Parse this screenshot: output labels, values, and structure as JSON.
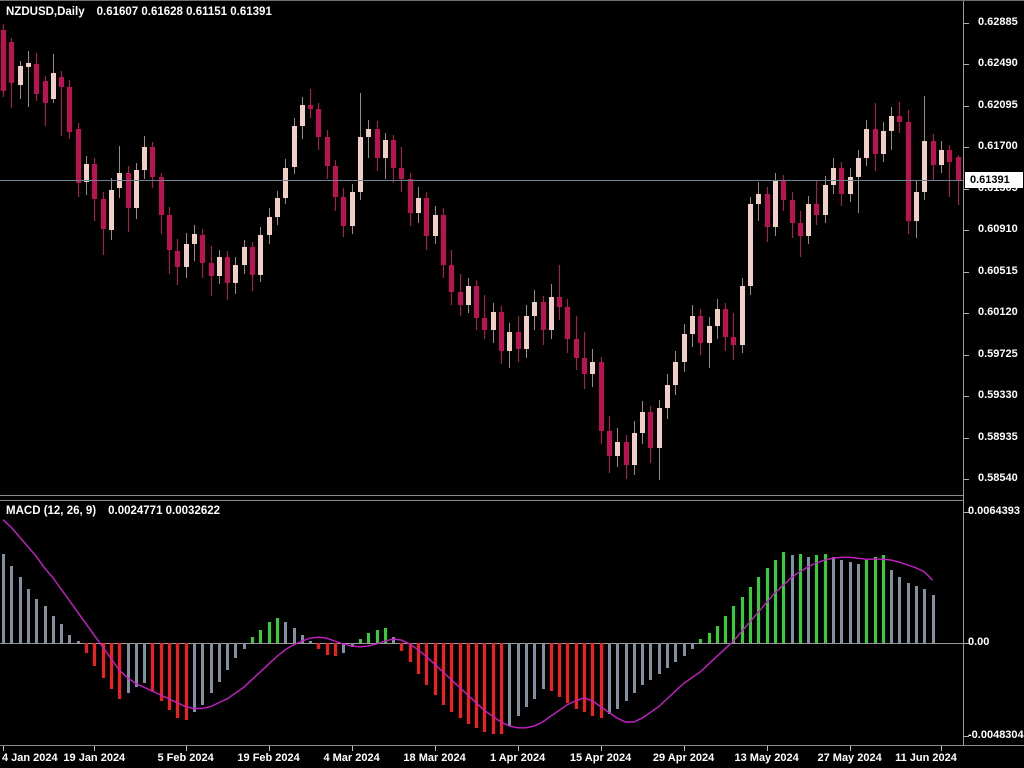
{
  "window": {
    "background": "#000000"
  },
  "price_panel": {
    "symbol": "NZDUSD,Daily",
    "ohlc_text": "0.61607 0.61628 0.61151 0.61391",
    "open": "0.61607",
    "high": "0.61628",
    "low": "0.61151",
    "close": "0.61391",
    "bid": "0.61391"
  },
  "macd_panel": {
    "label": "MACD (12, 26, 9)",
    "values_text": "0.0024771 0.0032622",
    "macd_value": "0.0024771",
    "signal_value": "0.0032622",
    "axis_labels": [
      "0.0064393",
      "0.00",
      "-0.0048304"
    ]
  },
  "colors": {
    "background": "#000000",
    "bull_body": "#f2cfc6",
    "bull_wick": "#9e8686",
    "bear_body": "#bc1254",
    "hist_gray": "#8191a2",
    "hist_red": "#fb1b1b",
    "hist_green": "#2fd32f",
    "signal_line": "#c81ec8",
    "bid_line": "#708090",
    "axis_text": "#ffffff",
    "frame": "#8a8a8a"
  },
  "chart_data": [
    {
      "type": "candlestick",
      "symbol": "NZDUSD",
      "timeframe": "Daily",
      "current_price": 0.61391,
      "y_axis_ticks": [
        0.62885,
        0.6249,
        0.62095,
        0.617,
        0.61305,
        0.6091,
        0.60515,
        0.6012,
        0.59725,
        0.5933,
        0.58935,
        0.5854
      ],
      "x_ticks": [
        {
          "label": "4 Jan 2024",
          "i": 0
        },
        {
          "label": "19 Jan 2024",
          "i": 11
        },
        {
          "label": "5 Feb 2024",
          "i": 22
        },
        {
          "label": "19 Feb 2024",
          "i": 32
        },
        {
          "label": "4 Mar 2024",
          "i": 42
        },
        {
          "label": "18 Mar 2024",
          "i": 52
        },
        {
          "label": "1 Apr 2024",
          "i": 62
        },
        {
          "label": "15 Apr 2024",
          "i": 72
        },
        {
          "label": "29 Apr 2024",
          "i": 82
        },
        {
          "label": "13 May 2024",
          "i": 92
        },
        {
          "label": "27 May 2024",
          "i": 102
        },
        {
          "label": "11 Jun 2024",
          "i": 113
        }
      ],
      "candles": [
        [
          0.6282,
          0.6288,
          0.6218,
          0.6224
        ],
        [
          0.627,
          0.6274,
          0.6208,
          0.6231
        ],
        [
          0.6229,
          0.6252,
          0.6216,
          0.6248
        ],
        [
          0.6247,
          0.6262,
          0.6209,
          0.625
        ],
        [
          0.6249,
          0.626,
          0.6214,
          0.6221
        ],
        [
          0.6233,
          0.6238,
          0.619,
          0.6212
        ],
        [
          0.6216,
          0.6259,
          0.6212,
          0.6241
        ],
        [
          0.6237,
          0.6243,
          0.6181,
          0.6228
        ],
        [
          0.6228,
          0.6234,
          0.6178,
          0.6185
        ],
        [
          0.6188,
          0.6193,
          0.6123,
          0.6136
        ],
        [
          0.6137,
          0.6162,
          0.6125,
          0.6154
        ],
        [
          0.6154,
          0.616,
          0.61,
          0.6121
        ],
        [
          0.6121,
          0.6128,
          0.6068,
          0.6092
        ],
        [
          0.6091,
          0.6141,
          0.6082,
          0.613
        ],
        [
          0.6131,
          0.6171,
          0.6122,
          0.6146
        ],
        [
          0.6146,
          0.6152,
          0.609,
          0.6112
        ],
        [
          0.6112,
          0.6155,
          0.6102,
          0.6149
        ],
        [
          0.6149,
          0.6181,
          0.614,
          0.617
        ],
        [
          0.617,
          0.6175,
          0.6131,
          0.6142
        ],
        [
          0.6142,
          0.6146,
          0.6088,
          0.6106
        ],
        [
          0.6106,
          0.6113,
          0.605,
          0.6072
        ],
        [
          0.6071,
          0.6083,
          0.6039,
          0.6056
        ],
        [
          0.6056,
          0.6089,
          0.6046,
          0.6078
        ],
        [
          0.6078,
          0.6096,
          0.6062,
          0.6088
        ],
        [
          0.6087,
          0.6092,
          0.6046,
          0.606
        ],
        [
          0.606,
          0.6076,
          0.6029,
          0.6048
        ],
        [
          0.6048,
          0.6072,
          0.604,
          0.6066
        ],
        [
          0.6066,
          0.6071,
          0.6025,
          0.6041
        ],
        [
          0.6041,
          0.6066,
          0.6031,
          0.6058
        ],
        [
          0.6058,
          0.6082,
          0.605,
          0.6075
        ],
        [
          0.6075,
          0.608,
          0.6033,
          0.6049
        ],
        [
          0.6049,
          0.6094,
          0.6042,
          0.6087
        ],
        [
          0.6087,
          0.6112,
          0.6078,
          0.6104
        ],
        [
          0.6104,
          0.6129,
          0.6096,
          0.6122
        ],
        [
          0.6122,
          0.6159,
          0.6116,
          0.615
        ],
        [
          0.6151,
          0.6198,
          0.6145,
          0.619
        ],
        [
          0.619,
          0.6218,
          0.6178,
          0.621
        ],
        [
          0.621,
          0.6226,
          0.6198,
          0.6207
        ],
        [
          0.6207,
          0.6212,
          0.6168,
          0.618
        ],
        [
          0.618,
          0.6187,
          0.614,
          0.6152
        ],
        [
          0.6152,
          0.6158,
          0.611,
          0.6123
        ],
        [
          0.6123,
          0.6131,
          0.6085,
          0.6095
        ],
        [
          0.6095,
          0.6135,
          0.6088,
          0.6128
        ],
        [
          0.6128,
          0.6222,
          0.612,
          0.618
        ],
        [
          0.618,
          0.6196,
          0.616,
          0.6188
        ],
        [
          0.6188,
          0.6195,
          0.6148,
          0.616
        ],
        [
          0.616,
          0.6184,
          0.614,
          0.6177
        ],
        [
          0.6177,
          0.6182,
          0.6136,
          0.615
        ],
        [
          0.615,
          0.617,
          0.6128,
          0.614
        ],
        [
          0.614,
          0.6146,
          0.6095,
          0.6108
        ],
        [
          0.6108,
          0.6132,
          0.6098,
          0.6122
        ],
        [
          0.6122,
          0.6128,
          0.6072,
          0.6086
        ],
        [
          0.6086,
          0.6114,
          0.6078,
          0.6106
        ],
        [
          0.6106,
          0.6112,
          0.6046,
          0.6058
        ],
        [
          0.6058,
          0.6072,
          0.602,
          0.6032
        ],
        [
          0.6032,
          0.605,
          0.601,
          0.602
        ],
        [
          0.602,
          0.6046,
          0.6012,
          0.6038
        ],
        [
          0.6038,
          0.6044,
          0.5996,
          0.6008
        ],
        [
          0.6008,
          0.603,
          0.5988,
          0.5996
        ],
        [
          0.5996,
          0.6022,
          0.5984,
          0.6013
        ],
        [
          0.6013,
          0.6019,
          0.5964,
          0.5976
        ],
        [
          0.5976,
          0.6003,
          0.596,
          0.5994
        ],
        [
          0.5994,
          0.601,
          0.5966,
          0.5978
        ],
        [
          0.5978,
          0.602,
          0.597,
          0.601
        ],
        [
          0.601,
          0.6034,
          0.5996,
          0.6023
        ],
        [
          0.6023,
          0.6029,
          0.5982,
          0.5996
        ],
        [
          0.5996,
          0.604,
          0.5988,
          0.6028
        ],
        [
          0.6028,
          0.6058,
          0.6006,
          0.6018
        ],
        [
          0.6018,
          0.6026,
          0.5974,
          0.5988
        ],
        [
          0.5988,
          0.601,
          0.5958,
          0.597
        ],
        [
          0.597,
          0.5994,
          0.594,
          0.5954
        ],
        [
          0.5954,
          0.5978,
          0.5942,
          0.5966
        ],
        [
          0.5966,
          0.5971,
          0.5888,
          0.59
        ],
        [
          0.59,
          0.5914,
          0.586,
          0.5876
        ],
        [
          0.5876,
          0.5903,
          0.5866,
          0.589
        ],
        [
          0.589,
          0.5896,
          0.5854,
          0.5868
        ],
        [
          0.5868,
          0.591,
          0.5858,
          0.5898
        ],
        [
          0.5898,
          0.5929,
          0.5888,
          0.5918
        ],
        [
          0.5918,
          0.5924,
          0.587,
          0.5884
        ],
        [
          0.5884,
          0.593,
          0.5853,
          0.5922
        ],
        [
          0.5922,
          0.5954,
          0.5912,
          0.5944
        ],
        [
          0.5944,
          0.5976,
          0.5934,
          0.5966
        ],
        [
          0.5966,
          0.6002,
          0.5956,
          0.5992
        ],
        [
          0.5992,
          0.602,
          0.598,
          0.601
        ],
        [
          0.601,
          0.6016,
          0.5972,
          0.5984
        ],
        [
          0.5984,
          0.6009,
          0.596,
          0.6
        ],
        [
          0.6,
          0.6026,
          0.5988,
          0.6016
        ],
        [
          0.6016,
          0.6022,
          0.5976,
          0.599
        ],
        [
          0.599,
          0.6012,
          0.5968,
          0.5982
        ],
        [
          0.5982,
          0.6046,
          0.5974,
          0.6038
        ],
        [
          0.6038,
          0.6123,
          0.603,
          0.6116
        ],
        [
          0.6116,
          0.6137,
          0.61,
          0.6126
        ],
        [
          0.6126,
          0.6132,
          0.608,
          0.6094
        ],
        [
          0.6094,
          0.6146,
          0.6086,
          0.6138
        ],
        [
          0.6138,
          0.6144,
          0.611,
          0.612
        ],
        [
          0.612,
          0.6128,
          0.6084,
          0.6098
        ],
        [
          0.6098,
          0.611,
          0.6066,
          0.6086
        ],
        [
          0.6086,
          0.6124,
          0.6078,
          0.6116
        ],
        [
          0.6116,
          0.6139,
          0.6096,
          0.6106
        ],
        [
          0.6106,
          0.6143,
          0.6098,
          0.6134
        ],
        [
          0.6134,
          0.616,
          0.6126,
          0.615
        ],
        [
          0.615,
          0.6156,
          0.6114,
          0.6126
        ],
        [
          0.6126,
          0.615,
          0.6118,
          0.6142
        ],
        [
          0.6142,
          0.6168,
          0.6108,
          0.616
        ],
        [
          0.616,
          0.6196,
          0.6152,
          0.6188
        ],
        [
          0.6188,
          0.6212,
          0.6148,
          0.6164
        ],
        [
          0.6164,
          0.6194,
          0.6156,
          0.6186
        ],
        [
          0.6186,
          0.6209,
          0.6168,
          0.62
        ],
        [
          0.62,
          0.6213,
          0.6184,
          0.6194
        ],
        [
          0.6194,
          0.6206,
          0.6088,
          0.61
        ],
        [
          0.61,
          0.6138,
          0.6084,
          0.6128
        ],
        [
          0.6128,
          0.6219,
          0.612,
          0.6176
        ],
        [
          0.6176,
          0.6183,
          0.6138,
          0.6153
        ],
        [
          0.6153,
          0.6176,
          0.6146,
          0.6168
        ],
        [
          0.6168,
          0.6172,
          0.6123,
          0.6156
        ],
        [
          0.61607,
          0.61628,
          0.61151,
          0.61391
        ]
      ]
    },
    {
      "type": "bar+line",
      "title": "MACD (12, 26, 9)",
      "params": [
        12,
        26,
        9
      ],
      "current_macd": 0.0024771,
      "current_signal": 0.0032622,
      "y_ticks": [
        0.0064393,
        0,
        -0.0048304
      ],
      "histogram_color_rule": "green: positive & rising; gray: positive & falling or negative & rising; red: negative & falling",
      "histogram": [
        0.0046,
        0.004,
        0.0034,
        0.0028,
        0.0023,
        0.0019,
        0.0014,
        0.001,
        0.0004,
        0.0001,
        -0.0005,
        -0.0012,
        -0.0018,
        -0.0024,
        -0.0029,
        -0.0026,
        -0.0023,
        -0.0021,
        -0.0025,
        -0.003,
        -0.0035,
        -0.0039,
        -0.004,
        -0.0036,
        -0.0032,
        -0.0026,
        -0.002,
        -0.0014,
        -0.0008,
        -0.0003,
        0.0003,
        0.0007,
        0.0011,
        0.0013,
        0.0011,
        0.0008,
        0.0004,
        0.0001,
        -0.0003,
        -0.0006,
        -0.0007,
        -0.0005,
        -0.0002,
        0.0002,
        0.0005,
        0.0007,
        0.0008,
        0.0003,
        -0.0004,
        -0.001,
        -0.0016,
        -0.0022,
        -0.0027,
        -0.0032,
        -0.0036,
        -0.0039,
        -0.0042,
        -0.0044,
        -0.0046,
        -0.0047,
        -0.0047,
        -0.0043,
        -0.0038,
        -0.0033,
        -0.0029,
        -0.0024,
        -0.0025,
        -0.0028,
        -0.0031,
        -0.0034,
        -0.0036,
        -0.0038,
        -0.0039,
        -0.0037,
        -0.0034,
        -0.003,
        -0.0026,
        -0.0022,
        -0.0019,
        -0.0016,
        -0.0013,
        -0.001,
        -0.0007,
        -0.0003,
        0.0002,
        0.0005,
        0.0009,
        0.0014,
        0.0019,
        0.0024,
        0.0029,
        0.0034,
        0.0039,
        0.0043,
        0.0047,
        0.00455,
        0.0046,
        0.00445,
        0.00455,
        0.0046,
        0.00445,
        0.0043,
        0.0042,
        0.0041,
        0.0043,
        0.00445,
        0.00455,
        0.0038,
        0.0034,
        0.0031,
        0.00295,
        0.0028,
        0.0024771
      ],
      "signal": [
        0.0064,
        0.006,
        0.0055,
        0.005,
        0.0045,
        0.0039,
        0.0034,
        0.0028,
        0.0022,
        0.0016,
        0.001,
        0.0004,
        -0.0002,
        -0.0008,
        -0.0014,
        -0.0018,
        -0.0021,
        -0.0023,
        -0.0025,
        -0.0027,
        -0.0029,
        -0.0031,
        -0.0033,
        -0.0034,
        -0.0034,
        -0.0033,
        -0.0031,
        -0.0029,
        -0.0026,
        -0.0023,
        -0.0019,
        -0.0015,
        -0.0011,
        -0.0007,
        -0.00035,
        -0.0001,
        0.0001,
        0.00025,
        0.0003,
        0.00025,
        0.0001,
        -5e-05,
        -0.00015,
        -0.0002,
        -0.00015,
        -5e-05,
        0.0001,
        0.0002,
        0.00015,
        -5e-05,
        -0.00035,
        -0.0007,
        -0.0011,
        -0.0015,
        -0.0019,
        -0.0023,
        -0.0027,
        -0.0031,
        -0.0035,
        -0.0038,
        -0.0041,
        -0.0043,
        -0.0044,
        -0.0044,
        -0.0043,
        -0.0041,
        -0.0038,
        -0.0035,
        -0.0032,
        -0.003,
        -0.00285,
        -0.003,
        -0.0033,
        -0.0036,
        -0.0039,
        -0.0041,
        -0.0041,
        -0.0039,
        -0.0036,
        -0.0033,
        -0.0029,
        -0.0025,
        -0.0021,
        -0.0018,
        -0.0015,
        -0.0011,
        -0.0007,
        -0.0003,
        0.0001,
        0.0006,
        0.0011,
        0.0016,
        0.0021,
        0.0026,
        0.003,
        0.0034,
        0.0037,
        0.00395,
        0.00415,
        0.0043,
        0.0044,
        0.00445,
        0.00445,
        0.0044,
        0.00435,
        0.00435,
        0.00435,
        0.0043,
        0.0042,
        0.00405,
        0.0039,
        0.0037,
        0.0032622
      ]
    }
  ]
}
